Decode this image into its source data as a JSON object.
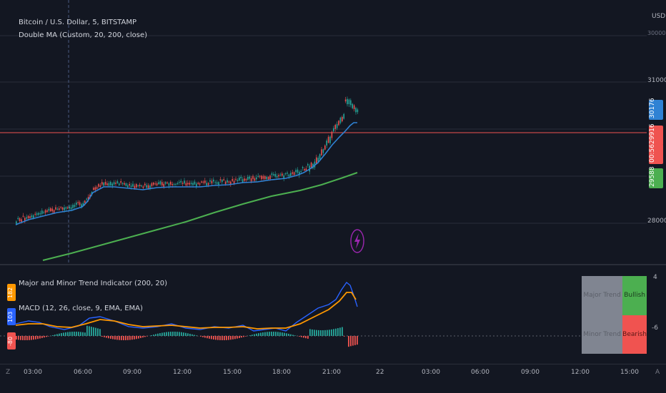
{
  "main_pane": {
    "symbol_legend": "Bitcoin / U.S. Dollar, 5, BITSTAMP",
    "indicator_legend": "Double MA (Custom, 20, 200, close)",
    "currency": "USD",
    "price_ticks": [
      "30000",
      "31000",
      "28000"
    ],
    "price_tags": {
      "ma20": "30176",
      "last": "29916",
      "countdown": "00:56",
      "ma200": "29588"
    }
  },
  "oscillator_pane": {
    "legend_1": "Major and Minor Trend Indicator (200, 20)",
    "legend_2": "MACD (12, 26, close, 9, EMA, EMA)",
    "side_tags": [
      "182",
      "103",
      "-80"
    ],
    "scale_ticks": [
      "4",
      "-6"
    ],
    "trend_table": {
      "rows": [
        {
          "label": "Major Trend",
          "value": "Bullish"
        },
        {
          "label": "Minor Trend",
          "value": "Bearish"
        }
      ]
    }
  },
  "time_axis": {
    "labels": [
      "03:00",
      "06:00",
      "09:00",
      "12:00",
      "15:00",
      "18:00",
      "21:00",
      "22",
      "03:00",
      "06:00",
      "09:00",
      "12:00",
      "15:00"
    ],
    "left_glyph": "Z",
    "right_glyph": "A"
  },
  "colors": {
    "background": "#131722",
    "up_candle": "#26a69a",
    "down_candle": "#ef5350",
    "ma20": "#2f82d4",
    "ma200": "#4caf50",
    "macd": "#2962ff",
    "signal": "#ff9800",
    "last_price_line": "#ef5350"
  },
  "icons": [
    "lightning-icon"
  ]
}
